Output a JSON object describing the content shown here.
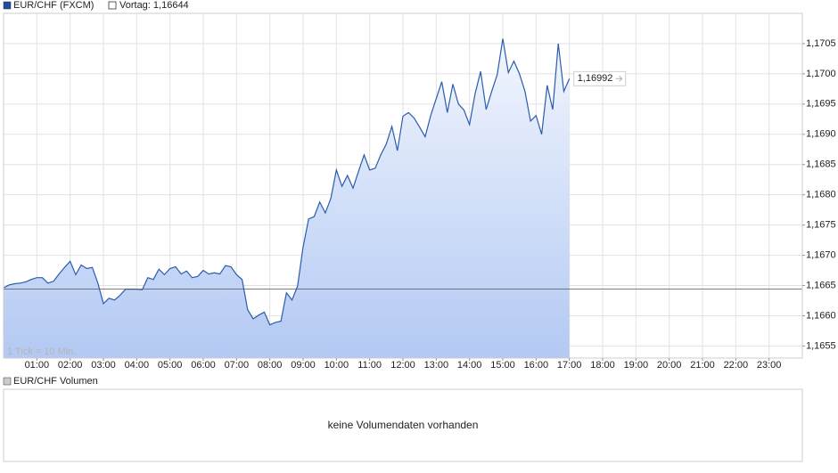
{
  "chart_data": {
    "type": "line",
    "area": true,
    "grid": true,
    "x": [
      0,
      10,
      20,
      30,
      40,
      50,
      60,
      70,
      80,
      90,
      100,
      110,
      120,
      130,
      140,
      150,
      160,
      170,
      180,
      190,
      200,
      210,
      220,
      230,
      240,
      250,
      260,
      270,
      280,
      290,
      300,
      310,
      320,
      330,
      340,
      350,
      360,
      370,
      380,
      390,
      400,
      410,
      420,
      430,
      440,
      450,
      460,
      470,
      480,
      490,
      500,
      510,
      520,
      530,
      540,
      550,
      560,
      570,
      580,
      590,
      600,
      610,
      620,
      630,
      640,
      650,
      660,
      670,
      680,
      690,
      700,
      710,
      720,
      730,
      740,
      750,
      760,
      770,
      780,
      790,
      800,
      810,
      820,
      830,
      840,
      850,
      860,
      870,
      880,
      890,
      900,
      910,
      920,
      930,
      940,
      950,
      960,
      970,
      980,
      990,
      1000,
      1010,
      1020
    ],
    "series": [
      {
        "name": "EUR/CHF (FXCM)",
        "color": "#2b5cad",
        "values": [
          1.16646,
          1.16651,
          1.16653,
          1.16654,
          1.16656,
          1.1666,
          1.16663,
          1.16663,
          1.16654,
          1.16657,
          1.16669,
          1.1668,
          1.1669,
          1.16668,
          1.16684,
          1.16678,
          1.1668,
          1.16654,
          1.1662,
          1.16629,
          1.16626,
          1.16634,
          1.16644,
          1.16644,
          1.16644,
          1.16643,
          1.16663,
          1.1666,
          1.16677,
          1.16668,
          1.16678,
          1.16681,
          1.16669,
          1.16674,
          1.16663,
          1.16665,
          1.16675,
          1.16669,
          1.16671,
          1.16669,
          1.16683,
          1.16681,
          1.16668,
          1.1666,
          1.1661,
          1.16595,
          1.16601,
          1.16606,
          1.16585,
          1.16589,
          1.16591,
          1.16638,
          1.16626,
          1.16649,
          1.16714,
          1.1676,
          1.16764,
          1.16788,
          1.1677,
          1.16794,
          1.16841,
          1.16814,
          1.16832,
          1.16811,
          1.16839,
          1.16866,
          1.16841,
          1.16844,
          1.16866,
          1.16884,
          1.16913,
          1.16873,
          1.1693,
          1.16936,
          1.16927,
          1.16912,
          1.16896,
          1.16931,
          1.16959,
          1.16987,
          1.16936,
          1.16983,
          1.1695,
          1.1694,
          1.16916,
          1.16967,
          1.17004,
          1.16941,
          1.16971,
          1.16999,
          1.17058,
          1.17002,
          1.17021,
          1.17,
          1.16971,
          1.16922,
          1.16931,
          1.169,
          1.16981,
          1.16941,
          1.1705,
          1.16971,
          1.16992
        ]
      }
    ],
    "last_value_label": "1,16992",
    "reference_line": {
      "name": "Vortag: 1,16644",
      "value": 1.16644,
      "color": "#555555"
    },
    "xlim": [
      0,
      1440
    ],
    "xticks": [
      {
        "value": 60,
        "label": "01:00"
      },
      {
        "value": 120,
        "label": "02:00"
      },
      {
        "value": 180,
        "label": "03:00"
      },
      {
        "value": 240,
        "label": "04:00"
      },
      {
        "value": 300,
        "label": "05:00"
      },
      {
        "value": 360,
        "label": "06:00"
      },
      {
        "value": 420,
        "label": "07:00"
      },
      {
        "value": 480,
        "label": "08:00"
      },
      {
        "value": 540,
        "label": "09:00"
      },
      {
        "value": 600,
        "label": "10:00"
      },
      {
        "value": 660,
        "label": "11:00"
      },
      {
        "value": 720,
        "label": "12:00"
      },
      {
        "value": 780,
        "label": "13:00"
      },
      {
        "value": 840,
        "label": "14:00"
      },
      {
        "value": 900,
        "label": "15:00"
      },
      {
        "value": 960,
        "label": "16:00"
      },
      {
        "value": 1020,
        "label": "17:00"
      },
      {
        "value": 1080,
        "label": "18:00"
      },
      {
        "value": 1140,
        "label": "19:00"
      },
      {
        "value": 1200,
        "label": "20:00"
      },
      {
        "value": 1260,
        "label": "21:00"
      },
      {
        "value": 1320,
        "label": "22:00"
      },
      {
        "value": 1380,
        "label": "23:00"
      }
    ],
    "ylim": [
      1.1653,
      1.171
    ],
    "yticks": [
      {
        "value": 1.1655,
        "label": "1,1655"
      },
      {
        "value": 1.166,
        "label": "1,1660"
      },
      {
        "value": 1.1665,
        "label": "1,1665"
      },
      {
        "value": 1.167,
        "label": "1,1670"
      },
      {
        "value": 1.1675,
        "label": "1,1675"
      },
      {
        "value": 1.168,
        "label": "1,1680"
      },
      {
        "value": 1.1685,
        "label": "1,1685"
      },
      {
        "value": 1.169,
        "label": "1,1690"
      },
      {
        "value": 1.1695,
        "label": "1,1695"
      },
      {
        "value": 1.17,
        "label": "1,1700"
      },
      {
        "value": 1.1705,
        "label": "1,1705"
      }
    ],
    "annotation": "1 Tick = 10 Min.",
    "volume_panel": {
      "title": "EUR/CHF Volumen",
      "message": "keine Volumendaten vorhanden"
    }
  }
}
